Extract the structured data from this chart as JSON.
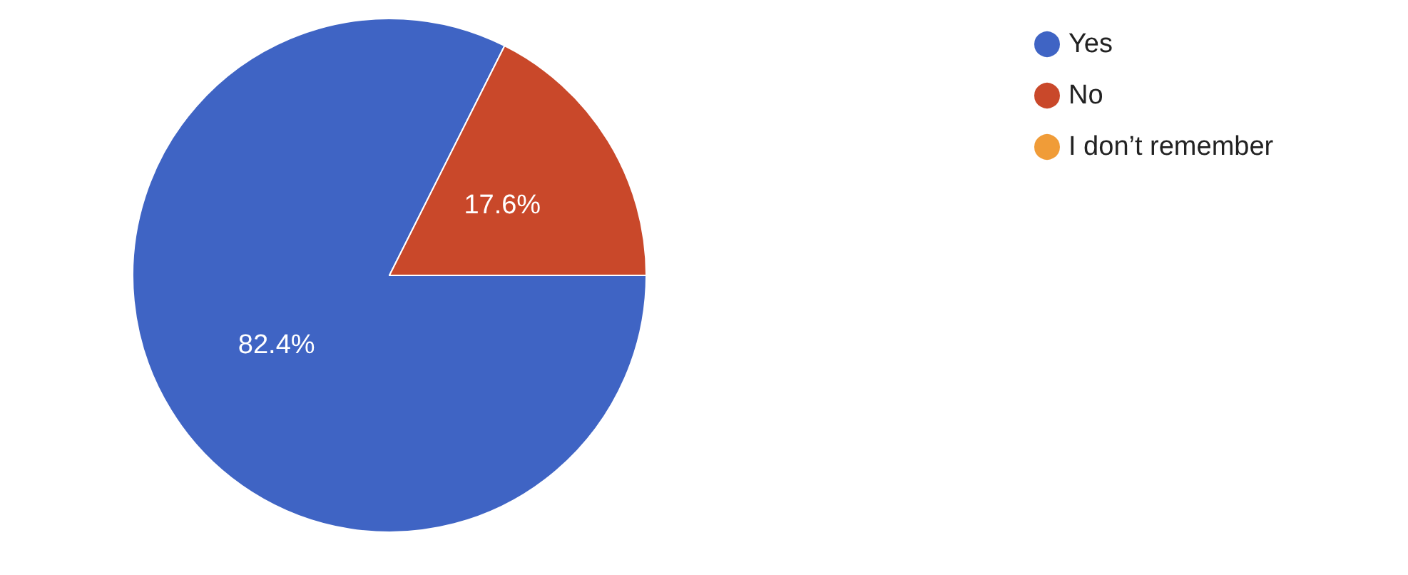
{
  "chart_data": {
    "type": "pie",
    "categories": [
      "Yes",
      "No",
      "I don’t remember"
    ],
    "values": [
      82.4,
      17.6,
      0
    ],
    "colors": [
      "#3f64c4",
      "#c9482a",
      "#f09c38"
    ],
    "value_labels": [
      "82.4%",
      "17.6%",
      null
    ],
    "legend": "top right"
  }
}
